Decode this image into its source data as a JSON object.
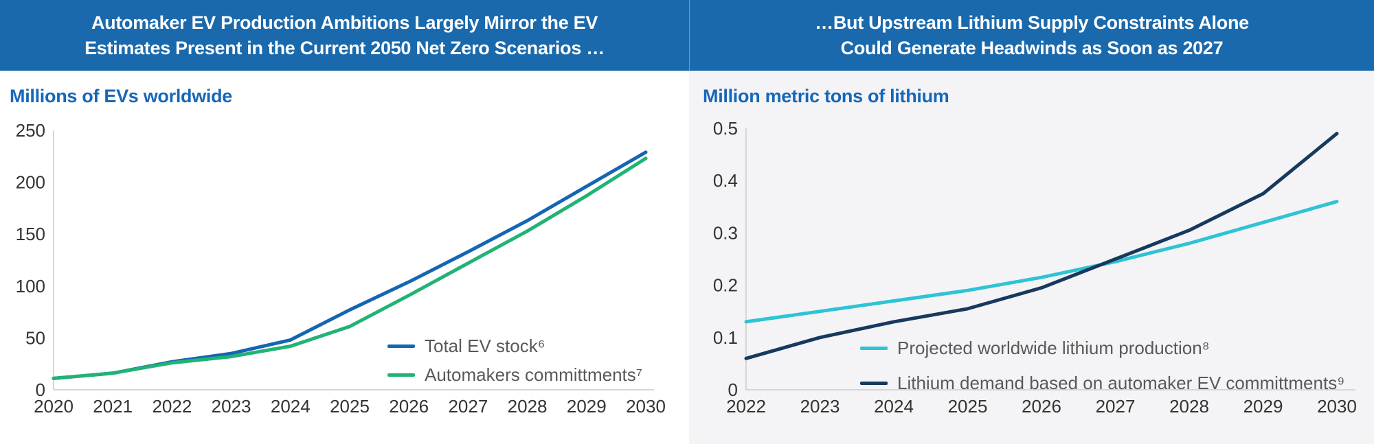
{
  "header": {
    "bg_color": "#1A69AD",
    "left_title_line1": "Automaker EV Production Ambitions Largely Mirror the EV",
    "left_title_line2": "Estimates Present in the Current 2050 Net Zero Scenarios …",
    "right_title_line1": "…But Upstream Lithium Supply Constraints Alone",
    "right_title_line2": "Could Generate Headwinds as Soon as 2027"
  },
  "left_panel": {
    "subtitle": "Millions of EVs worldwide",
    "subtitle_color": "#1667B8",
    "background": "#FFFFFF"
  },
  "right_panel": {
    "subtitle": "Million metric tons of lithium",
    "subtitle_color": "#1667B8",
    "background": "#F4F4F6"
  },
  "style": {
    "axis_color": "#D6D6D6",
    "tick_label_color": "#333333",
    "legend_text_color": "#595959"
  },
  "chart_data": [
    {
      "type": "line",
      "title": "Automaker EV Production Ambitions Largely Mirror the EV Estimates Present in the Current 2050 Net Zero Scenarios …",
      "ylabel": "Millions of EVs worldwide",
      "xlabel": "",
      "categories": [
        "2020",
        "2021",
        "2022",
        "2023",
        "2024",
        "2025",
        "2026",
        "2027",
        "2028",
        "2029",
        "2030"
      ],
      "ylim": [
        0,
        250
      ],
      "yticks": [
        0,
        50,
        100,
        150,
        200,
        250
      ],
      "ytick_labels": [
        "0",
        "50",
        "100",
        "150",
        "200",
        "250"
      ],
      "grid": false,
      "legend_position": "inside-lower-right",
      "series": [
        {
          "name": "Total EV stock⁶",
          "color": "#1566B2",
          "values": [
            11,
            16,
            27,
            35,
            48,
            77,
            104,
            133,
            163,
            196,
            229
          ]
        },
        {
          "name": "Automakers committments⁷",
          "color": "#21B374",
          "values": [
            11,
            16,
            26,
            32,
            42,
            61,
            91,
            122,
            153,
            187,
            223
          ]
        }
      ]
    },
    {
      "type": "line",
      "title": "…But Upstream Lithium Supply Constraints Alone Could Generate Headwinds as Soon as 2027",
      "ylabel": "Million metric tons of lithium",
      "xlabel": "",
      "categories": [
        "2022",
        "2023",
        "2024",
        "2025",
        "2026",
        "2027",
        "2028",
        "2029",
        "2030"
      ],
      "ylim": [
        0,
        0.5
      ],
      "yticks": [
        0,
        0.1,
        0.2,
        0.3,
        0.4,
        0.5
      ],
      "ytick_labels": [
        "0",
        "0.1",
        "0.2",
        "0.3",
        "0.4",
        "0.5"
      ],
      "grid": false,
      "legend_position": "inside-lower-right",
      "series": [
        {
          "name": "Projected worldwide lithium production⁸",
          "color": "#2EC3D5",
          "values": [
            0.13,
            0.15,
            0.17,
            0.19,
            0.215,
            0.245,
            0.28,
            0.32,
            0.36
          ]
        },
        {
          "name": "Lithium demand based on automaker EV committments⁹",
          "color": "#17395E",
          "values": [
            0.06,
            0.1,
            0.13,
            0.155,
            0.195,
            0.25,
            0.305,
            0.375,
            0.49
          ]
        }
      ]
    }
  ]
}
